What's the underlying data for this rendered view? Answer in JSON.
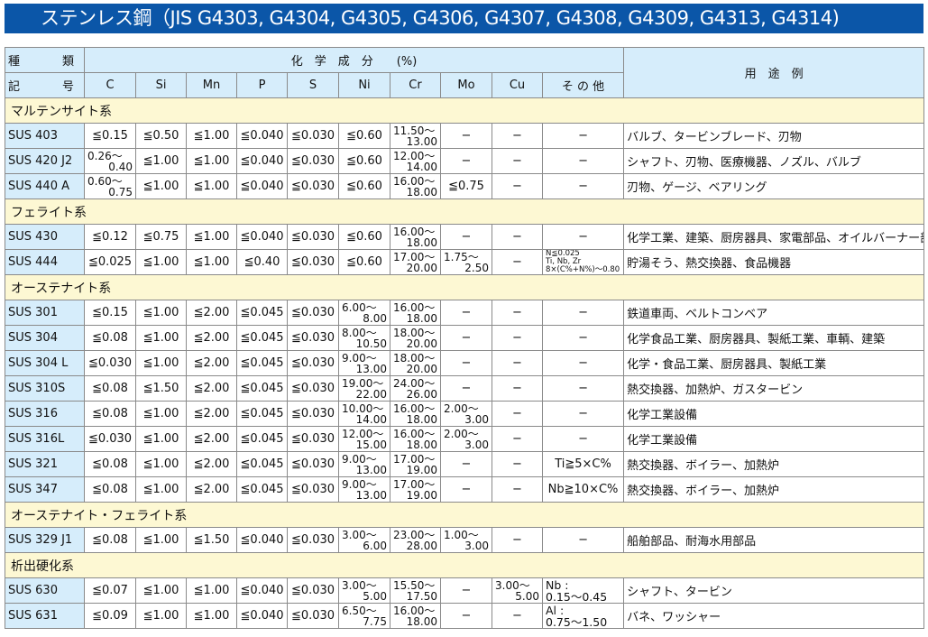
{
  "title": "ステンレス鋼（JIS G4303, G4304, G4305, G4306, G4307, G4308, G4309, G4313, G4314)",
  "header": {
    "kind_top": [
      "種",
      "類"
    ],
    "kind_bottom": [
      "記",
      "号"
    ],
    "chem": "化　学　成　分　　(%)",
    "use": "用　途　例",
    "cols": [
      "C",
      "Si",
      "Mn",
      "P",
      "S",
      "Ni",
      "Cr",
      "Mo",
      "Cu",
      "そ の 他"
    ]
  },
  "sections": [
    {
      "group": "マルテンサイト系",
      "rows": [
        {
          "name": "SUS 403",
          "v": [
            "≦0.15",
            "≦0.50",
            "≦1.00",
            "≦0.040",
            "≦0.030",
            "≦0.60",
            [
              "11.50〜",
              "13.00"
            ],
            "−",
            "−",
            "−"
          ],
          "use": "バルブ、タービンブレード、刃物"
        },
        {
          "name": "SUS 420 J2",
          "v": [
            [
              "0.26〜",
              "0.40"
            ],
            "≦1.00",
            "≦1.00",
            "≦0.040",
            "≦0.030",
            "≦0.60",
            [
              "12.00〜",
              "14.00"
            ],
            "−",
            "−",
            "−"
          ],
          "use": "シャフト、刃物、医療機器、ノズル、バルブ"
        },
        {
          "name": "SUS 440 A",
          "v": [
            [
              "0.60〜",
              "0.75"
            ],
            "≦1.00",
            "≦1.00",
            "≦0.040",
            "≦0.030",
            "≦0.60",
            [
              "16.00〜",
              "18.00"
            ],
            "≦0.75",
            "−",
            "−"
          ],
          "use": "刃物、ゲージ、ベアリング"
        }
      ]
    },
    {
      "group": "フェライト系",
      "rows": [
        {
          "name": "SUS 430",
          "v": [
            "≦0.12",
            "≦0.75",
            "≦1.00",
            "≦0.040",
            "≦0.030",
            "≦0.60",
            [
              "16.00〜",
              "18.00"
            ],
            "−",
            "−",
            "−"
          ],
          "use": "化学工業、建築、厨房器具、家電部品、オイルバーナー部品"
        },
        {
          "name": "SUS 444",
          "v": [
            "≦0.025",
            "≦1.00",
            "≦1.00",
            "≦0.40",
            "≦0.030",
            "≦0.60",
            [
              "17.00〜",
              "20.00"
            ],
            [
              "1.75〜",
              "2.50"
            ],
            "−",
            {
              "small": [
                "N≦0.025",
                "Ti, Nb, Zr",
                "8×(C%+N%)〜0.80"
              ]
            }
          ],
          "use": "貯湯そう、熱交換器、食品機器"
        }
      ]
    },
    {
      "group": "オーステナイト系",
      "rows": [
        {
          "name": "SUS 301",
          "v": [
            "≦0.15",
            "≦1.00",
            "≦2.00",
            "≦0.045",
            "≦0.030",
            [
              "6.00〜",
              "8.00"
            ],
            [
              "16.00〜",
              "18.00"
            ],
            "−",
            "−",
            "−"
          ],
          "use": "鉄道車両、ベルトコンベア"
        },
        {
          "name": "SUS 304",
          "v": [
            "≦0.08",
            "≦1.00",
            "≦2.00",
            "≦0.045",
            "≦0.030",
            [
              "8.00〜",
              "10.50"
            ],
            [
              "18.00〜",
              "20.00"
            ],
            "−",
            "−",
            "−"
          ],
          "use": "化学食品工業、厨房器具、製紙工業、車輌、建築"
        },
        {
          "name": "SUS 304 L",
          "v": [
            "≦0.030",
            "≦1.00",
            "≦2.00",
            "≦0.045",
            "≦0.030",
            [
              "9.00〜",
              "13.00"
            ],
            [
              "18.00〜",
              "20.00"
            ],
            "−",
            "−",
            "−"
          ],
          "use": "化学・食品工業、厨房器具、製紙工業"
        },
        {
          "name": "SUS 310S",
          "v": [
            "≦0.08",
            "≦1.50",
            "≦2.00",
            "≦0.045",
            "≦0.030",
            [
              "19.00〜",
              "22.00"
            ],
            [
              "24.00〜",
              "26.00"
            ],
            "−",
            "−",
            "−"
          ],
          "use": "熱交換器、加熱炉、ガスタービン"
        },
        {
          "name": "SUS 316",
          "v": [
            "≦0.08",
            "≦1.00",
            "≦2.00",
            "≦0.045",
            "≦0.030",
            [
              "10.00〜",
              "14.00"
            ],
            [
              "16.00〜",
              "18.00"
            ],
            [
              "2.00〜",
              "3.00"
            ],
            "−",
            "−"
          ],
          "use": "化学工業設備"
        },
        {
          "name": "SUS 316L",
          "v": [
            "≦0.030",
            "≦1.00",
            "≦2.00",
            "≦0.045",
            "≦0.030",
            [
              "12.00〜",
              "15.00"
            ],
            [
              "16.00〜",
              "18.00"
            ],
            [
              "2.00〜",
              "3.00"
            ],
            "−",
            "−"
          ],
          "use": "化学工業設備"
        },
        {
          "name": "SUS 321",
          "v": [
            "≦0.08",
            "≦1.00",
            "≦2.00",
            "≦0.045",
            "≦0.030",
            [
              "9.00〜",
              "13.00"
            ],
            [
              "17.00〜",
              "19.00"
            ],
            "−",
            "−",
            "Ti≧5×C%"
          ],
          "use": "熱交換器、ボイラー、加熱炉"
        },
        {
          "name": "SUS 347",
          "v": [
            "≦0.08",
            "≦1.00",
            "≦2.00",
            "≦0.045",
            "≦0.030",
            [
              "9.00〜",
              "13.00"
            ],
            [
              "17.00〜",
              "19.00"
            ],
            "−",
            "−",
            "Nb≧10×C%"
          ],
          "use": "熱交換器、ボイラー、加熱炉"
        }
      ]
    },
    {
      "group": "オーステナイト・フェライト系",
      "rows": [
        {
          "name": "SUS 329 J1",
          "v": [
            "≦0.08",
            "≦1.00",
            "≦1.50",
            "≦0.040",
            "≦0.030",
            [
              "3.00〜",
              "6.00"
            ],
            [
              "23.00〜",
              "28.00"
            ],
            [
              "1.00〜",
              "3.00"
            ],
            "−",
            "−"
          ],
          "use": "船舶部品、耐海水用部品"
        }
      ]
    },
    {
      "group": "析出硬化系",
      "rows": [
        {
          "name": "SUS 630",
          "v": [
            "≦0.07",
            "≦1.00",
            "≦1.00",
            "≦0.040",
            "≦0.030",
            [
              "3.00〜",
              "5.00"
            ],
            [
              "15.50〜",
              "17.50"
            ],
            "−",
            [
              "3.00〜",
              "5.00"
            ],
            {
              "label": [
                "Nb :",
                "0.15〜0.45"
              ]
            }
          ],
          "use": "シャフト、タービン"
        },
        {
          "name": "SUS 631",
          "v": [
            "≦0.09",
            "≦1.00",
            "≦1.00",
            "≦0.040",
            "≦0.030",
            [
              "6.50〜",
              "7.75"
            ],
            [
              "16.00〜",
              "18.00"
            ],
            "−",
            "−",
            {
              "label": [
                "Al :",
                "0.75〜1.50"
              ]
            }
          ],
          "use": "バネ、ワッシャー"
        }
      ]
    }
  ]
}
